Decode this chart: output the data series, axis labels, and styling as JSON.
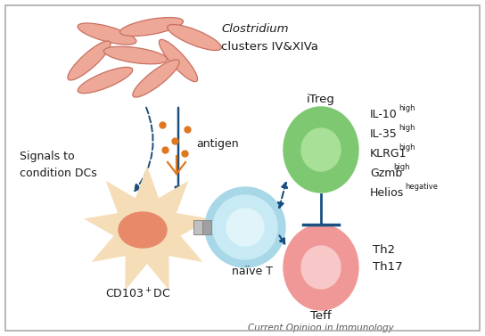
{
  "bg_color": "#ffffff",
  "border_color": "#aaaaaa",
  "title_italic": "Clostridium",
  "title_normal": "clusters IV&XIVa",
  "signals_text": "Signals to\ncondition DCs",
  "antigen_text": "antigen",
  "cd103_text": "CD103⁺DC",
  "naive_text": "naïve T",
  "itreg_text": "iTreg",
  "teff_text": "Teff",
  "th_text": "Th2\nTh17",
  "marker_text": "Current Opinion in Immunology",
  "itreg_labels": [
    "IL-10",
    "IL-35",
    "KLRG1",
    "Gzmb",
    "Helios"
  ],
  "itreg_superscripts": [
    "high",
    "high",
    "high",
    "high",
    "hegative"
  ],
  "dc_color": "#f5ddb8",
  "dc_nucleus_color": "#e8896a",
  "naive_t_outer_color": "#a8d8e8",
  "naive_t_mid_color": "#c8eaf5",
  "naive_t_inner_color": "#e0f4fa",
  "itreg_outer_color": "#7dc870",
  "itreg_inner_color": "#a8e098",
  "teff_outer_color": "#f09898",
  "teff_inner_color": "#f8c8c8",
  "bacteria_color": "#c87060",
  "bacteria_fill": "#eea898",
  "arrow_color": "#1a5080",
  "antigen_dot_color": "#e07820",
  "text_color": "#1a1a1a",
  "bacteria_params": [
    [
      2.05,
      6.45,
      15,
      0.85,
      0.22
    ],
    [
      2.65,
      6.55,
      -10,
      0.9,
      0.22
    ],
    [
      3.25,
      6.45,
      20,
      0.8,
      0.22
    ],
    [
      1.75,
      6.05,
      -40,
      0.78,
      0.22
    ],
    [
      2.4,
      6.1,
      5,
      0.88,
      0.22
    ],
    [
      3.05,
      6.05,
      45,
      0.75,
      0.2
    ],
    [
      2.1,
      5.7,
      -20,
      0.82,
      0.22
    ],
    [
      2.8,
      5.72,
      -35,
      0.8,
      0.21
    ]
  ]
}
